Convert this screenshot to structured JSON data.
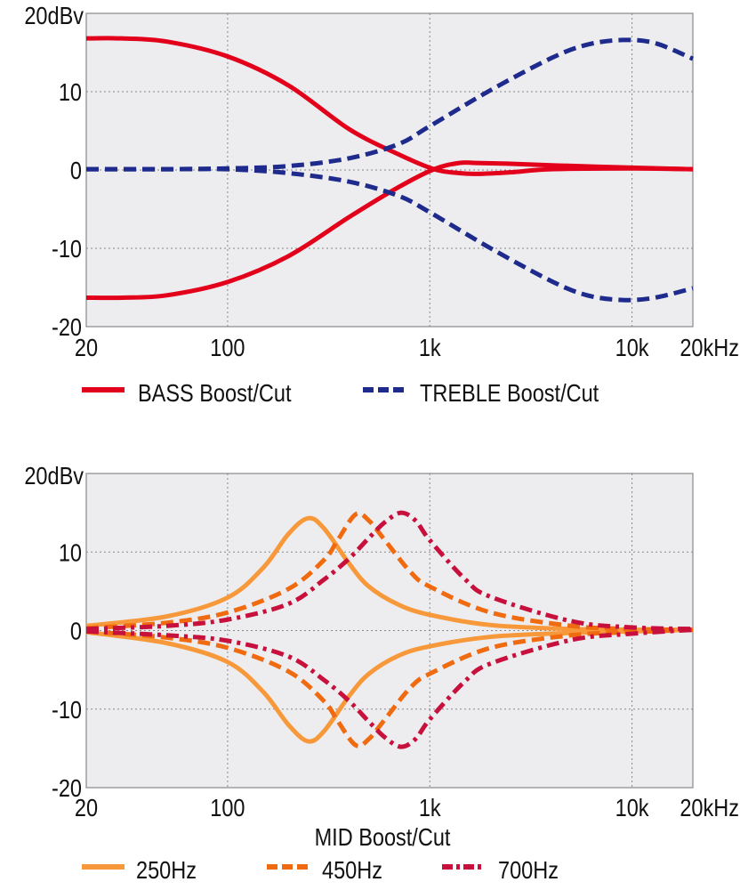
{
  "chart_data": [
    {
      "type": "line",
      "x_scale": "log",
      "xlim": [
        20,
        20000
      ],
      "ylim": [
        -20,
        20
      ],
      "grid": true,
      "legend_placement": "bottom",
      "xticks": [
        {
          "v": 20,
          "label": "20"
        },
        {
          "v": 100,
          "label": "100"
        },
        {
          "v": 1000,
          "label": "1k"
        },
        {
          "v": 10000,
          "label": "10k"
        },
        {
          "v": 20000,
          "label": "20kHz"
        }
      ],
      "yticks": [
        {
          "v": 20,
          "label": "20dBv"
        },
        {
          "v": 10,
          "label": "10"
        },
        {
          "v": 0,
          "label": "0"
        },
        {
          "v": -10,
          "label": "-10"
        },
        {
          "v": -20,
          "label": "-20"
        }
      ],
      "xlabel": "",
      "series": [
        {
          "name": "BASS Boost/Cut",
          "color": "#E3001B",
          "style": "solid",
          "curves": [
            {
              "x": [
                20,
                30,
                50,
                100,
                200,
                400,
                700,
                1050,
                1400,
                1700,
                2500,
                4000,
                10000,
                20000
              ],
              "y": [
                16.8,
                16.8,
                16.4,
                14.5,
                10.8,
                5.2,
                2.0,
                0.1,
                -0.4,
                -0.5,
                -0.3,
                0.1,
                0.2,
                0.1
              ]
            },
            {
              "x": [
                20,
                30,
                50,
                100,
                200,
                400,
                700,
                1050,
                1400,
                1700,
                2500,
                4000,
                10000,
                20000
              ],
              "y": [
                -16.3,
                -16.3,
                -16.0,
                -14.3,
                -11.0,
                -6.0,
                -2.2,
                0.1,
                0.9,
                0.9,
                0.8,
                0.6,
                0.3,
                0.1
              ]
            }
          ]
        },
        {
          "name": "TREBLE Boost/Cut",
          "color": "#1E2A8C",
          "style": "dashed",
          "curves": [
            {
              "x": [
                20,
                50,
                100,
                200,
                400,
                700,
                1000,
                2000,
                4000,
                6000,
                9000,
                13000,
                20000
              ],
              "y": [
                0.1,
                0.1,
                0.2,
                0.5,
                1.5,
                3.3,
                5.6,
                10.2,
                14.3,
                16.0,
                16.6,
                16.2,
                14.2
              ]
            },
            {
              "x": [
                20,
                50,
                100,
                200,
                400,
                700,
                1000,
                2000,
                4000,
                6000,
                9000,
                13000,
                20000
              ],
              "y": [
                0.1,
                0.1,
                0.1,
                -0.4,
                -1.5,
                -3.3,
                -5.4,
                -10.0,
                -14.2,
                -16.0,
                -16.6,
                -16.3,
                -15.1
              ]
            }
          ]
        }
      ]
    },
    {
      "type": "line",
      "x_scale": "log",
      "xlim": [
        20,
        20000
      ],
      "ylim": [
        -20,
        20
      ],
      "grid": true,
      "legend_placement": "bottom",
      "xticks": [
        {
          "v": 20,
          "label": "20"
        },
        {
          "v": 100,
          "label": "100"
        },
        {
          "v": 1000,
          "label": "1k"
        },
        {
          "v": 10000,
          "label": "10k"
        },
        {
          "v": 20000,
          "label": "20kHz"
        }
      ],
      "yticks": [
        {
          "v": 20,
          "label": "20dBv"
        },
        {
          "v": 10,
          "label": "10"
        },
        {
          "v": 0,
          "label": "0"
        },
        {
          "v": -10,
          "label": "-10"
        },
        {
          "v": -20,
          "label": "-20"
        }
      ],
      "xlabel": "MID Boost/Cut",
      "series": [
        {
          "name": "250Hz",
          "color": "#F7993A",
          "style": "solid",
          "curves": [
            {
              "x": [
                20,
                50,
                100,
                150,
                200,
                250,
                300,
                400,
                500,
                700,
                1000,
                2000,
                5000,
                10000,
                20000
              ],
              "y": [
                0.6,
                1.8,
                4.2,
                8.0,
                12.3,
                14.3,
                13.0,
                8.5,
                5.6,
                3.3,
                2.0,
                0.7,
                0.2,
                0.1,
                0.1
              ]
            },
            {
              "x": [
                20,
                50,
                100,
                150,
                200,
                250,
                300,
                400,
                500,
                700,
                1000,
                2000,
                5000,
                10000,
                20000
              ],
              "y": [
                -0.2,
                -1.6,
                -4.0,
                -7.8,
                -12.0,
                -14.1,
                -12.8,
                -8.3,
                -5.5,
                -3.2,
                -2.0,
                -0.8,
                -0.3,
                -0.1,
                0.1
              ]
            }
          ]
        },
        {
          "name": "450Hz",
          "color": "#F06A10",
          "style": "dashed",
          "curves": [
            {
              "x": [
                20,
                50,
                100,
                200,
                300,
                350,
                430,
                500,
                600,
                800,
                1000,
                2000,
                5000,
                10000,
                20000
              ],
              "y": [
                0.3,
                1.0,
                2.3,
                5.3,
                9.0,
                11.5,
                14.8,
                14.0,
                11.5,
                7.5,
                5.6,
                2.3,
                0.6,
                0.2,
                0.1
              ]
            },
            {
              "x": [
                20,
                50,
                100,
                200,
                300,
                350,
                430,
                500,
                600,
                800,
                1000,
                2000,
                5000,
                10000,
                20000
              ],
              "y": [
                -0.1,
                -0.9,
                -2.2,
                -5.2,
                -9.0,
                -11.5,
                -14.6,
                -13.8,
                -11.3,
                -7.3,
                -5.5,
                -2.2,
                -0.6,
                -0.2,
                0.1
              ]
            }
          ]
        },
        {
          "name": "700Hz",
          "color": "#C8103C",
          "style": "dashdot",
          "curves": [
            {
              "x": [
                20,
                50,
                100,
                200,
                300,
                400,
                500,
                600,
                720,
                850,
                1000,
                1500,
                2000,
                5000,
                10000,
                20000
              ],
              "y": [
                0.2,
                0.6,
                1.4,
                3.4,
                6.5,
                9.2,
                11.8,
                13.8,
                15.0,
                14.0,
                11.5,
                6.5,
                4.3,
                1.2,
                0.4,
                0.2
              ]
            },
            {
              "x": [
                20,
                50,
                100,
                200,
                300,
                400,
                500,
                600,
                720,
                850,
                1000,
                1500,
                2000,
                5000,
                10000,
                20000
              ],
              "y": [
                -0.1,
                -0.6,
                -1.3,
                -3.3,
                -6.3,
                -9.0,
                -11.6,
                -13.6,
                -14.8,
                -13.8,
                -11.3,
                -6.4,
                -4.2,
                -1.2,
                -0.4,
                0.1
              ]
            }
          ]
        }
      ]
    }
  ]
}
